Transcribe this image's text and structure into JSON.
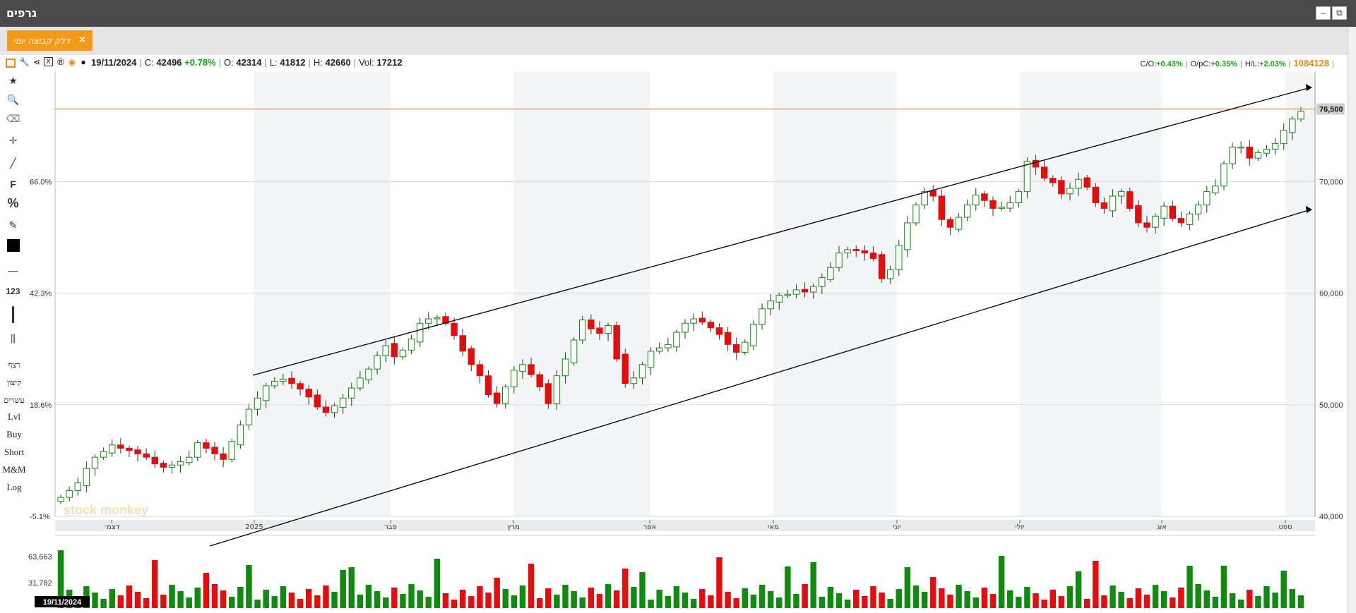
{
  "window": {
    "title": "גרפים",
    "minimize": "–",
    "restore": "⧉"
  },
  "tab": {
    "label": "דלק קבוצה יומי",
    "close": "×"
  },
  "info": {
    "date": "19/11/2024",
    "close_label": "C:",
    "close": "42496",
    "change": "+0.78%",
    "open_label": "O:",
    "open": "42314",
    "low_label": "L:",
    "low": "41812",
    "high_label": "H:",
    "high": "42660",
    "vol_label": "Vol:",
    "vol": "17212"
  },
  "stats": {
    "co_label": "C/O:",
    "co": "+0.43%",
    "opc_label": "O/pC:",
    "opc": "+0.35%",
    "hl_label": "H/L:",
    "hl": "+2.03%",
    "total": "1084128"
  },
  "toolbar": {
    "icons": [
      "calendar-icon",
      "wrench-icon",
      "share-icon",
      "excel-icon",
      "registered-icon",
      "play-icon",
      "comment-icon"
    ],
    "tools": [
      "star-icon",
      "zoom-icon",
      "eraser-icon",
      "crosshair-icon",
      "pen-line-icon",
      "F",
      "%",
      "edit-icon",
      "color-swatch-icon",
      "dash-icon",
      "123",
      "vertical-line-icon",
      "candle-style-icon"
    ],
    "text_items": [
      "רצף",
      "קיצון",
      "עשרים",
      "Lvl",
      "Buy",
      "Short",
      "M&M",
      "Log"
    ]
  },
  "chart_data": {
    "type": "candlestick",
    "x_months": [
      "דצמ׳",
      "2025",
      "פבר",
      "מרץ",
      "אפר",
      "מאי",
      "יוני",
      "יולי",
      "אוג",
      "ספט"
    ],
    "y_right_ticks": [
      "40,000",
      "50,000",
      "60,000",
      "70,000"
    ],
    "y_left_ticks": [
      "-5.1%",
      "18.6%",
      "42.3%",
      "66.0%"
    ],
    "ylim": [
      40000,
      80000
    ],
    "hline": {
      "value": 76500,
      "label": "76,500",
      "color": "#e58a1a"
    },
    "volume_ticks": [
      "31,782",
      "63,663"
    ],
    "current_date_label": "19/11/2024",
    "watermark": "stock monkey",
    "closes_approx": [
      41700,
      42300,
      43000,
      44300,
      45300,
      45800,
      46400,
      46100,
      45900,
      45600,
      45300,
      44700,
      44400,
      44600,
      44900,
      45300,
      46600,
      46100,
      45600,
      45100,
      46700,
      48200,
      49600,
      50600,
      51700,
      52100,
      52300,
      51900,
      51400,
      50700,
      49800,
      49300,
      49900,
      50600,
      51500,
      52400,
      53200,
      54400,
      55300,
      54300,
      54900,
      55900,
      57300,
      57700,
      57800,
      57300,
      56200,
      54800,
      53600,
      52600,
      50900,
      50100,
      51600,
      53100,
      53600,
      52700,
      51600,
      50100,
      52600,
      54100,
      55800,
      57600,
      56800,
      56400,
      57100,
      54100,
      51900,
      52400,
      53600,
      54800,
      55100,
      55400,
      56500,
      57300,
      57700,
      57400,
      56900,
      56300,
      55400,
      54700,
      55600,
      57200,
      58600,
      59300,
      59800,
      59900,
      60300,
      60100,
      60600,
      61400,
      62300,
      63600,
      63900,
      63800,
      63600,
      63100,
      61300,
      62100,
      64300,
      66300,
      67900,
      69100,
      68700,
      66600,
      65900,
      66800,
      67900,
      68800,
      68300,
      67600,
      67700,
      68100,
      69100,
      71800,
      71300,
      70300,
      69900,
      68900,
      69400,
      70200,
      69500,
      68100,
      67600,
      68700,
      69100,
      67600,
      66300,
      65900,
      66900,
      67800,
      66700,
      66300,
      67100,
      67900,
      69100,
      69600,
      71600,
      73100,
      73100,
      72100,
      72600,
      72900,
      73400,
      74600,
      75600,
      76300
    ]
  }
}
